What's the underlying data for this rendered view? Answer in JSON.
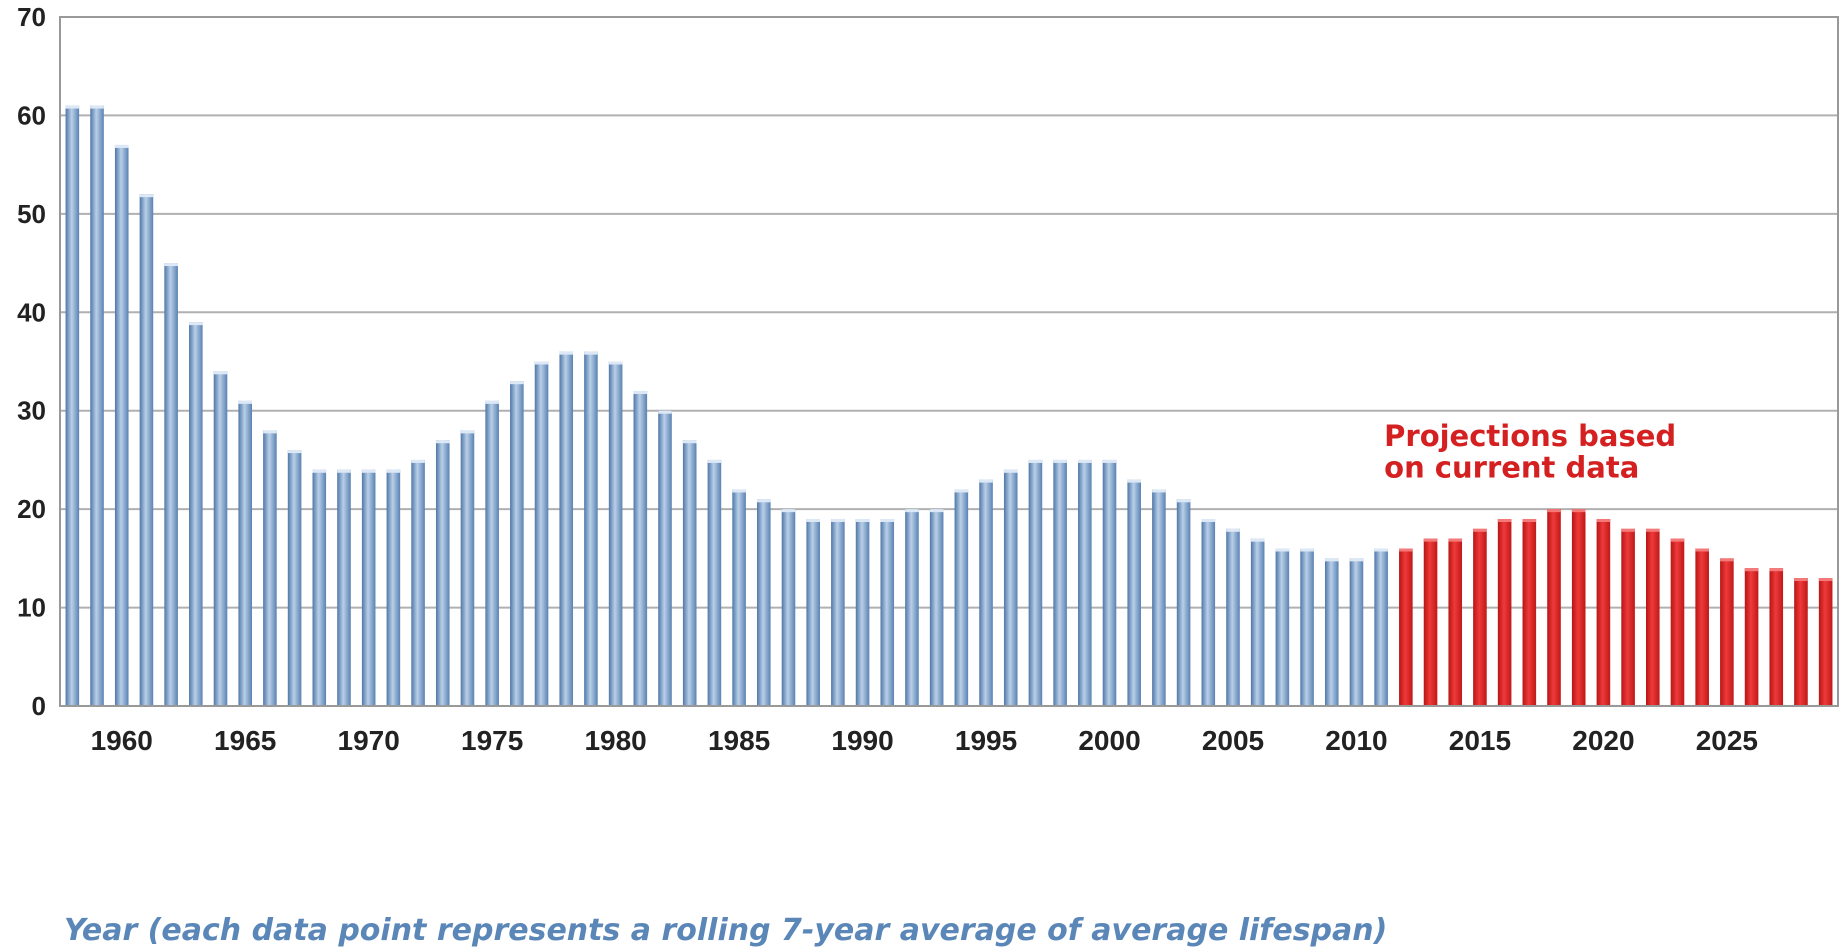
{
  "chart_data": {
    "type": "bar",
    "xlabel": "Year (each data point represents a rolling 7-year average of average lifespan)",
    "ylabel": "",
    "ylim": [
      0,
      70
    ],
    "y_ticks": [
      "0",
      "10",
      "20",
      "30",
      "40",
      "50",
      "60",
      "70"
    ],
    "x_ticks": [
      "1960",
      "1965",
      "1970",
      "1975",
      "1980",
      "1985",
      "1990",
      "1995",
      "2000",
      "2005",
      "2010",
      "2015",
      "2020",
      "2025"
    ],
    "grid": true,
    "annotation_lines": [
      "Projections based",
      "on current data"
    ],
    "colors": {
      "historical": "#7a9fc9",
      "projected": "#d42020",
      "grid": "#b0b0b0"
    },
    "series": [
      {
        "x": [
          1958,
          1959,
          1960,
          1961,
          1962,
          1963,
          1964,
          1965,
          1966,
          1967,
          1968,
          1969,
          1970,
          1971,
          1972,
          1973,
          1974,
          1975,
          1976,
          1977,
          1978,
          1979,
          1980,
          1981,
          1982,
          1983,
          1984,
          1985,
          1986,
          1987,
          1988,
          1989,
          1990,
          1991,
          1992,
          1993,
          1994,
          1995,
          1996,
          1997,
          1998,
          1999,
          2000,
          2001,
          2002,
          2003,
          2004,
          2005,
          2006,
          2007,
          2008,
          2009,
          2010,
          2011
        ],
        "values": [
          61,
          61,
          57,
          52,
          45,
          39,
          34,
          31,
          28,
          26,
          24,
          24,
          24,
          24,
          25,
          27,
          28,
          31,
          33,
          35,
          36,
          36,
          35,
          32,
          30,
          27,
          25,
          22,
          21,
          20,
          19,
          19,
          19,
          19,
          20,
          20,
          22,
          23,
          24,
          25,
          25,
          25,
          25,
          23,
          22,
          21,
          19,
          18,
          17,
          16,
          16,
          15,
          15,
          16
        ]
      },
      {
        "x": [
          2012,
          2013,
          2014,
          2015,
          2016,
          2017,
          2018,
          2019,
          2020,
          2021,
          2022,
          2023,
          2024,
          2025,
          2026,
          2027,
          2028,
          2029
        ],
        "values": [
          16,
          17,
          17,
          18,
          19,
          19,
          20,
          20,
          19,
          18,
          18,
          17,
          16,
          15,
          14,
          14,
          13,
          13
        ]
      }
    ]
  }
}
